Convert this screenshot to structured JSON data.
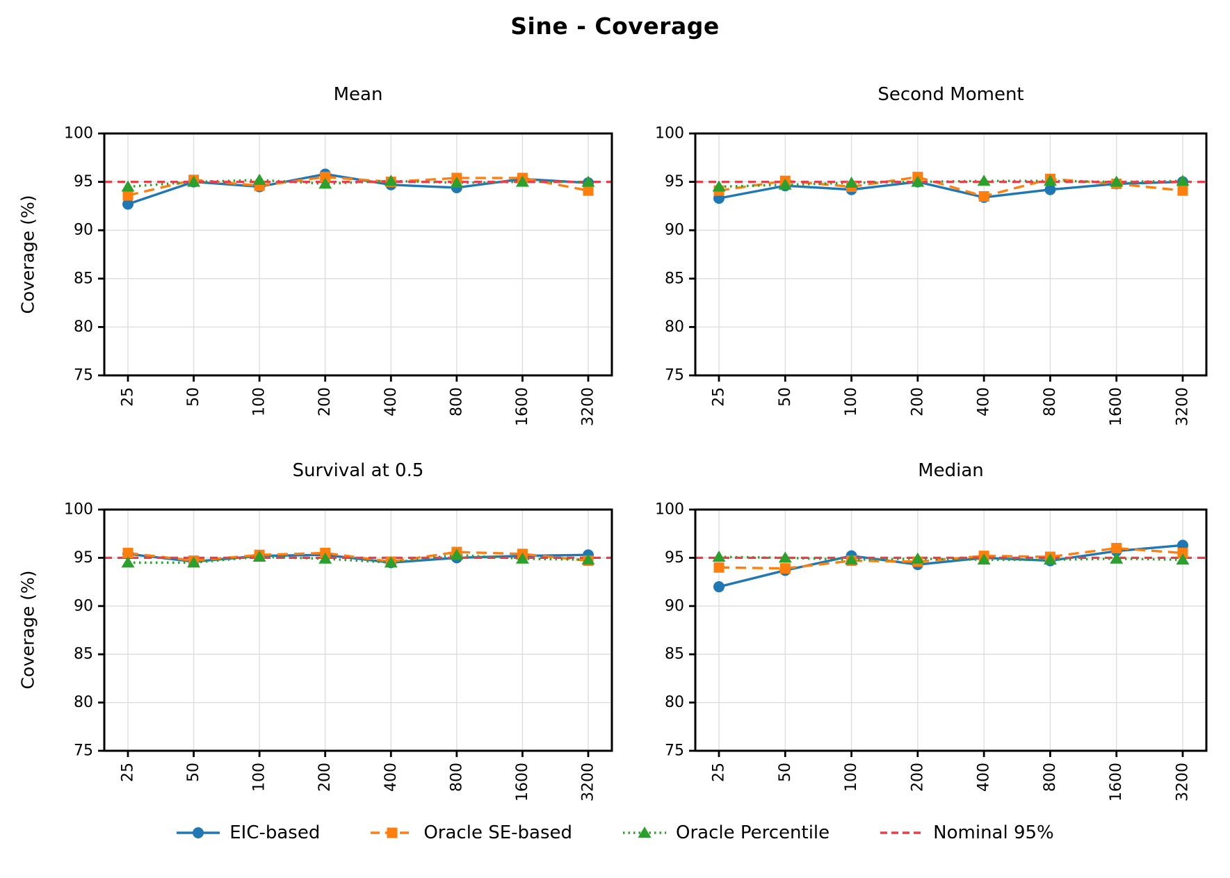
{
  "figure": {
    "title": "Sine - Coverage",
    "ylabel": "Coverage (%)",
    "background": "#ffffff"
  },
  "series_meta": [
    {
      "name": "EIC-based",
      "color": "#1f77b4",
      "marker": "circle",
      "line": "solid"
    },
    {
      "name": "Oracle SE-based",
      "color": "#ff7f0e",
      "marker": "square",
      "line": "dashed"
    },
    {
      "name": "Oracle Percentile",
      "color": "#2ca02c",
      "marker": "triangle",
      "line": "dotted"
    },
    {
      "name": "Nominal 95%",
      "color": "#e8404a",
      "marker": "none",
      "line": "dashed"
    }
  ],
  "axes_style": {
    "grid_color": "#dcdcdc",
    "spine_color": "#000000",
    "tick_label_color": "#000000",
    "grid": true
  },
  "chart_data": [
    {
      "type": "line",
      "title": "Mean",
      "x": [
        25,
        50,
        100,
        200,
        400,
        800,
        1600,
        3200
      ],
      "x_scale": "log",
      "xlabel": "",
      "ylabel": "Coverage (%)",
      "ylim": [
        75,
        100
      ],
      "y_ticks": [
        75,
        80,
        85,
        90,
        95,
        100
      ],
      "nominal": 95,
      "series": [
        {
          "name": "EIC-based",
          "values": [
            92.7,
            95.0,
            94.5,
            95.8,
            94.7,
            94.4,
            95.3,
            94.9
          ]
        },
        {
          "name": "Oracle SE-based",
          "values": [
            93.6,
            95.2,
            94.6,
            95.5,
            95.0,
            95.4,
            95.4,
            94.1
          ]
        },
        {
          "name": "Oracle Percentile",
          "values": [
            94.5,
            95.0,
            95.2,
            94.8,
            95.1,
            94.9,
            95.0,
            95.0
          ]
        }
      ]
    },
    {
      "type": "line",
      "title": "Second Moment",
      "x": [
        25,
        50,
        100,
        200,
        400,
        800,
        1600,
        3200
      ],
      "x_scale": "log",
      "xlabel": "",
      "ylabel": "Coverage (%)",
      "ylim": [
        75,
        100
      ],
      "y_ticks": [
        75,
        80,
        85,
        90,
        95,
        100
      ],
      "nominal": 95,
      "series": [
        {
          "name": "EIC-based",
          "values": [
            93.3,
            94.6,
            94.2,
            95.0,
            93.4,
            94.2,
            94.8,
            95.0
          ]
        },
        {
          "name": "Oracle SE-based",
          "values": [
            94.1,
            95.1,
            94.5,
            95.5,
            93.5,
            95.3,
            94.8,
            94.1
          ]
        },
        {
          "name": "Oracle Percentile",
          "values": [
            94.5,
            94.7,
            94.9,
            95.0,
            95.1,
            95.1,
            95.0,
            95.1
          ]
        }
      ]
    },
    {
      "type": "line",
      "title": "Survival at 0.5",
      "x": [
        25,
        50,
        100,
        200,
        400,
        800,
        1600,
        3200
      ],
      "x_scale": "log",
      "xlabel": "",
      "ylabel": "Coverage (%)",
      "ylim": [
        75,
        100
      ],
      "y_ticks": [
        75,
        80,
        85,
        90,
        95,
        100
      ],
      "nominal": 95,
      "series": [
        {
          "name": "EIC-based",
          "values": [
            95.4,
            94.6,
            95.2,
            95.3,
            94.5,
            95.0,
            95.2,
            95.3
          ]
        },
        {
          "name": "Oracle SE-based",
          "values": [
            95.5,
            94.7,
            95.3,
            95.5,
            94.6,
            95.6,
            95.4,
            94.7
          ]
        },
        {
          "name": "Oracle Percentile",
          "values": [
            94.5,
            94.5,
            95.1,
            94.9,
            94.5,
            95.3,
            94.9,
            94.8
          ]
        }
      ]
    },
    {
      "type": "line",
      "title": "Median",
      "x": [
        25,
        50,
        100,
        200,
        400,
        800,
        1600,
        3200
      ],
      "x_scale": "log",
      "xlabel": "",
      "ylabel": "Coverage (%)",
      "ylim": [
        75,
        100
      ],
      "y_ticks": [
        75,
        80,
        85,
        90,
        95,
        100
      ],
      "nominal": 95,
      "series": [
        {
          "name": "EIC-based",
          "values": [
            92.0,
            93.7,
            95.2,
            94.3,
            95.0,
            94.7,
            95.7,
            96.3
          ]
        },
        {
          "name": "Oracle SE-based",
          "values": [
            94.0,
            93.9,
            94.7,
            94.6,
            95.2,
            95.1,
            96.0,
            95.5
          ]
        },
        {
          "name": "Oracle Percentile",
          "values": [
            95.1,
            95.0,
            94.8,
            94.9,
            94.8,
            94.8,
            94.9,
            94.8
          ]
        }
      ]
    }
  ]
}
